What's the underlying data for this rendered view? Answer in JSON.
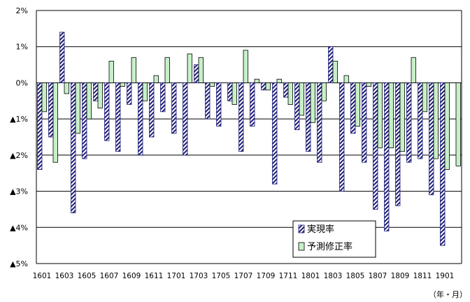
{
  "chart_data": {
    "type": "bar",
    "title": "",
    "xlabel": "",
    "ylabel": "",
    "unit_label": "（年・月）",
    "ylim": [
      -5,
      2
    ],
    "y_ticks": [
      2,
      1,
      0,
      -1,
      -2,
      -3,
      -4,
      -5
    ],
    "y_tick_labels": [
      "2%",
      "1%",
      "0%",
      "▲1%",
      "▲2%",
      "▲3%",
      "▲4%",
      "▲5%"
    ],
    "x_tick_labels": [
      "1601",
      "1603",
      "1605",
      "1607",
      "1609",
      "1611",
      "1701",
      "1703",
      "1705",
      "1707",
      "1709",
      "1711",
      "1801",
      "1803",
      "1805",
      "1807",
      "1809",
      "1811",
      "1901"
    ],
    "legend_position": "lower-right",
    "categories": [
      "1601",
      "1602",
      "1603",
      "1604",
      "1605",
      "1606",
      "1607",
      "1608",
      "1609",
      "1610",
      "1611",
      "1612",
      "1701",
      "1702",
      "1703",
      "1704",
      "1705",
      "1706",
      "1707",
      "1708",
      "1709",
      "1710",
      "1711",
      "1712",
      "1801",
      "1802",
      "1803",
      "1804",
      "1805",
      "1806",
      "1807",
      "1808",
      "1809",
      "1810",
      "1811",
      "1812",
      "1901",
      "1902"
    ],
    "series": [
      {
        "name": "実現率",
        "pattern": "diagonal-hatch",
        "color": "#1f1f7a",
        "values": [
          -2.4,
          -1.5,
          1.4,
          -3.6,
          -2.1,
          -0.5,
          -1.6,
          -1.9,
          -0.6,
          -2.0,
          -1.5,
          -0.8,
          -1.4,
          -2.0,
          0.5,
          -1.0,
          -1.2,
          -0.5,
          -1.9,
          -1.2,
          -0.2,
          -2.8,
          -0.4,
          -1.3,
          -1.9,
          -2.2,
          1.0,
          -3.0,
          -1.4,
          -2.2,
          -3.5,
          -4.1,
          -3.4,
          -2.2,
          -2.1,
          -3.1,
          -4.5,
          -0.0
        ]
      },
      {
        "name": "予測修正率",
        "pattern": "solid",
        "color": "#c8f0c8",
        "values": [
          -0.8,
          -2.2,
          -0.3,
          -1.4,
          -1.0,
          -0.7,
          0.6,
          -0.1,
          0.7,
          -0.5,
          0.2,
          0.7,
          0.0,
          0.8,
          0.7,
          -0.1,
          0.0,
          -0.6,
          0.9,
          0.1,
          -0.2,
          0.1,
          -0.6,
          -0.9,
          -1.1,
          -0.5,
          0.6,
          0.2,
          -1.2,
          -0.1,
          -1.8,
          -1.8,
          -1.9,
          0.7,
          -0.8,
          -2.1,
          -2.4,
          -2.3
        ]
      }
    ]
  }
}
